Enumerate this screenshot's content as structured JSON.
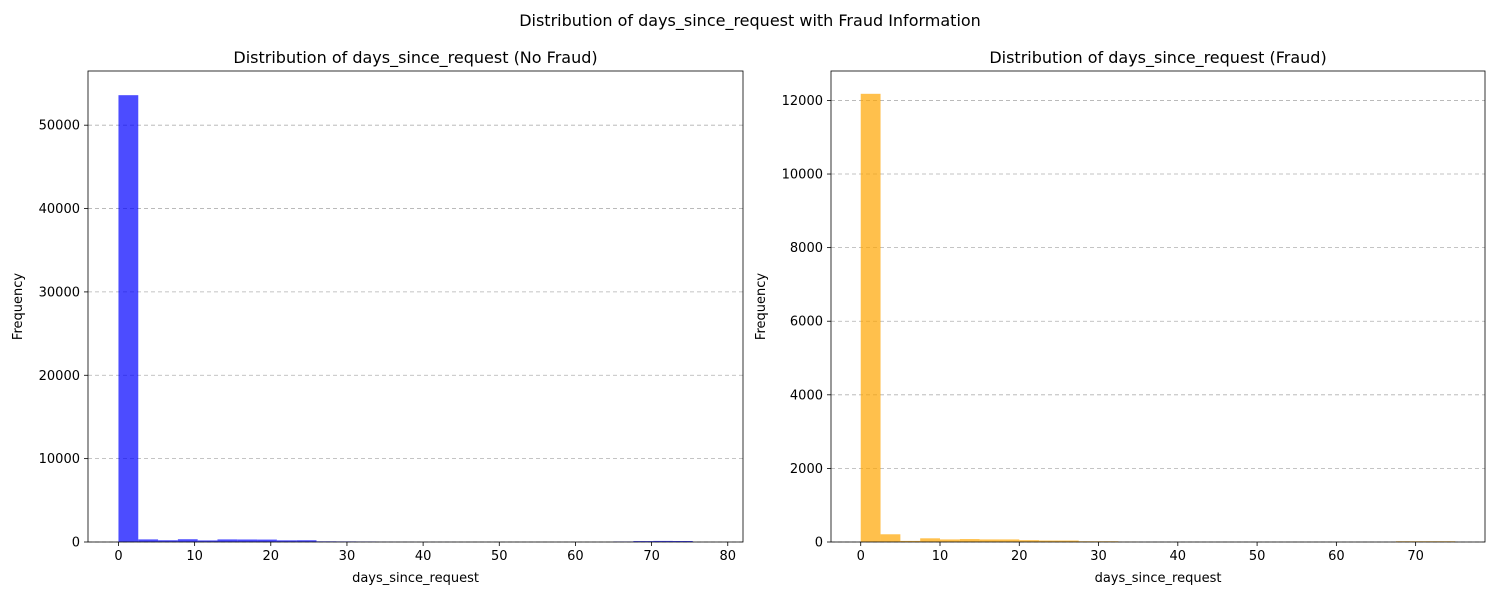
{
  "figure": {
    "title": "Distribution of days_since_request with Fraud Information"
  },
  "chart_data": [
    {
      "type": "bar",
      "title": "Distribution of days_since_request (No Fraud)",
      "xlabel": "days_since_request",
      "ylabel": "Frequency",
      "xlim": [
        -4,
        82
      ],
      "ylim": [
        0,
        56500
      ],
      "xticks": [
        0,
        10,
        20,
        30,
        40,
        50,
        60,
        70,
        80
      ],
      "yticks": [
        0,
        10000,
        20000,
        30000,
        40000,
        50000
      ],
      "grid": "y dashed",
      "color": "#0000ff",
      "alpha": 0.7,
      "bin_edges": [
        0,
        2.6,
        5.2,
        7.8,
        10.4,
        13.0,
        15.6,
        18.2,
        20.8,
        23.4,
        26.0,
        28.6,
        31.2,
        33.8,
        36.4,
        39.0,
        41.6,
        44.2,
        46.8,
        49.4,
        52.0,
        54.6,
        57.2,
        59.8,
        62.4,
        65.0,
        67.6,
        70.2,
        72.8,
        75.4,
        78.0
      ],
      "values": [
        53600,
        310,
        210,
        330,
        190,
        310,
        300,
        290,
        200,
        210,
        80,
        70,
        60,
        20,
        10,
        5,
        5,
        0,
        0,
        0,
        0,
        0,
        0,
        0,
        0,
        60,
        110,
        130,
        120,
        0
      ]
    },
    {
      "type": "bar",
      "title": "Distribution of days_since_request (Fraud)",
      "xlabel": "days_since_request",
      "ylabel": "Frequency",
      "xlim": [
        -3.75,
        78.75
      ],
      "ylim": [
        0,
        12800
      ],
      "xticks": [
        0,
        10,
        20,
        30,
        40,
        50,
        60,
        70
      ],
      "yticks": [
        0,
        2000,
        4000,
        6000,
        8000,
        10000,
        12000
      ],
      "grid": "y dashed",
      "color": "#ffa500",
      "alpha": 0.7,
      "bin_edges": [
        0,
        2.5,
        5,
        7.5,
        10,
        12.5,
        15,
        17.5,
        20,
        22.5,
        25,
        27.5,
        30,
        32.5,
        35,
        37.5,
        40,
        42.5,
        45,
        47.5,
        50,
        52.5,
        55,
        57.5,
        60,
        62.5,
        65,
        67.5,
        70,
        72.5,
        75
      ],
      "values": [
        12180,
        210,
        30,
        100,
        70,
        80,
        70,
        70,
        50,
        40,
        40,
        20,
        20,
        5,
        0,
        0,
        0,
        0,
        0,
        0,
        0,
        0,
        0,
        0,
        0,
        0,
        0,
        20,
        20,
        20
      ]
    }
  ]
}
